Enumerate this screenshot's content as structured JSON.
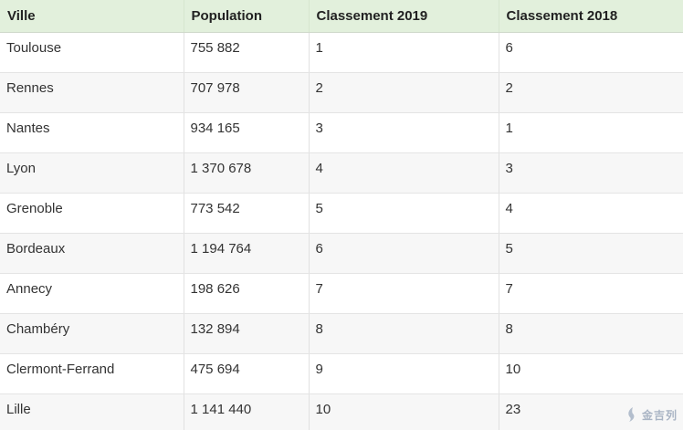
{
  "table": {
    "headers": [
      "Ville",
      "Population",
      "Classement 2019",
      "Classement 2018"
    ],
    "rows": [
      [
        "Toulouse",
        "755 882",
        "1",
        "6"
      ],
      [
        "Rennes",
        "707 978",
        "2",
        "2"
      ],
      [
        "Nantes",
        "934 165",
        "3",
        "1"
      ],
      [
        "Lyon",
        "1 370 678",
        "4",
        "3"
      ],
      [
        "Grenoble",
        "773 542",
        "5",
        "4"
      ],
      [
        "Bordeaux",
        "1 194 764",
        "6",
        "5"
      ],
      [
        "Annecy",
        "198 626",
        "7",
        "7"
      ],
      [
        "Chambéry",
        "132 894",
        "8",
        "8"
      ],
      [
        "Clermont-Ferrand",
        "475 694",
        "9",
        "10"
      ],
      [
        "Lille",
        "1 141 440",
        "10",
        "23"
      ]
    ]
  },
  "watermark": {
    "text": "金吉列",
    "icon": "logo-mark-icon"
  },
  "colors": {
    "header_bg": "#e2f0dc",
    "row_alt_bg": "#f7f7f7",
    "grid_line": "#e1e1e1"
  }
}
